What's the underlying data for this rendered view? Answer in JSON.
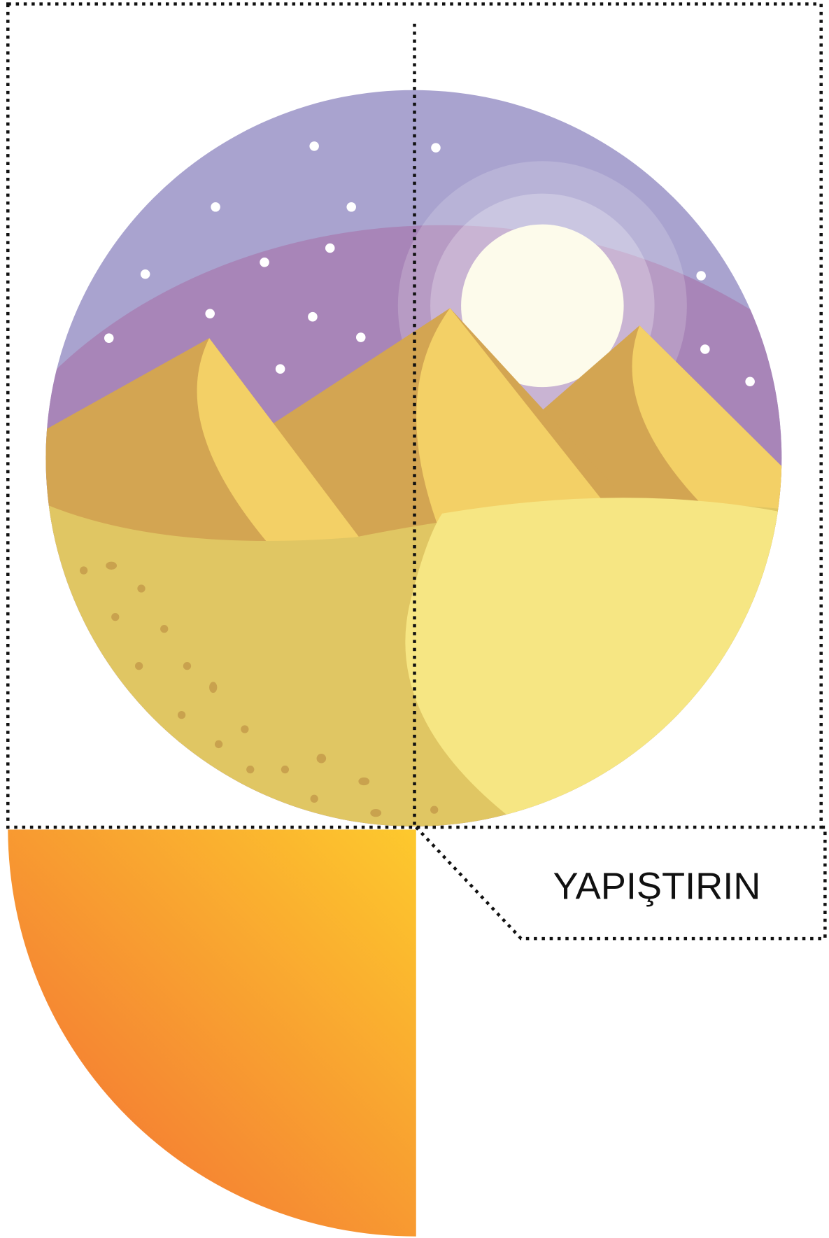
{
  "label": "YAPIŞTIRIN"
}
